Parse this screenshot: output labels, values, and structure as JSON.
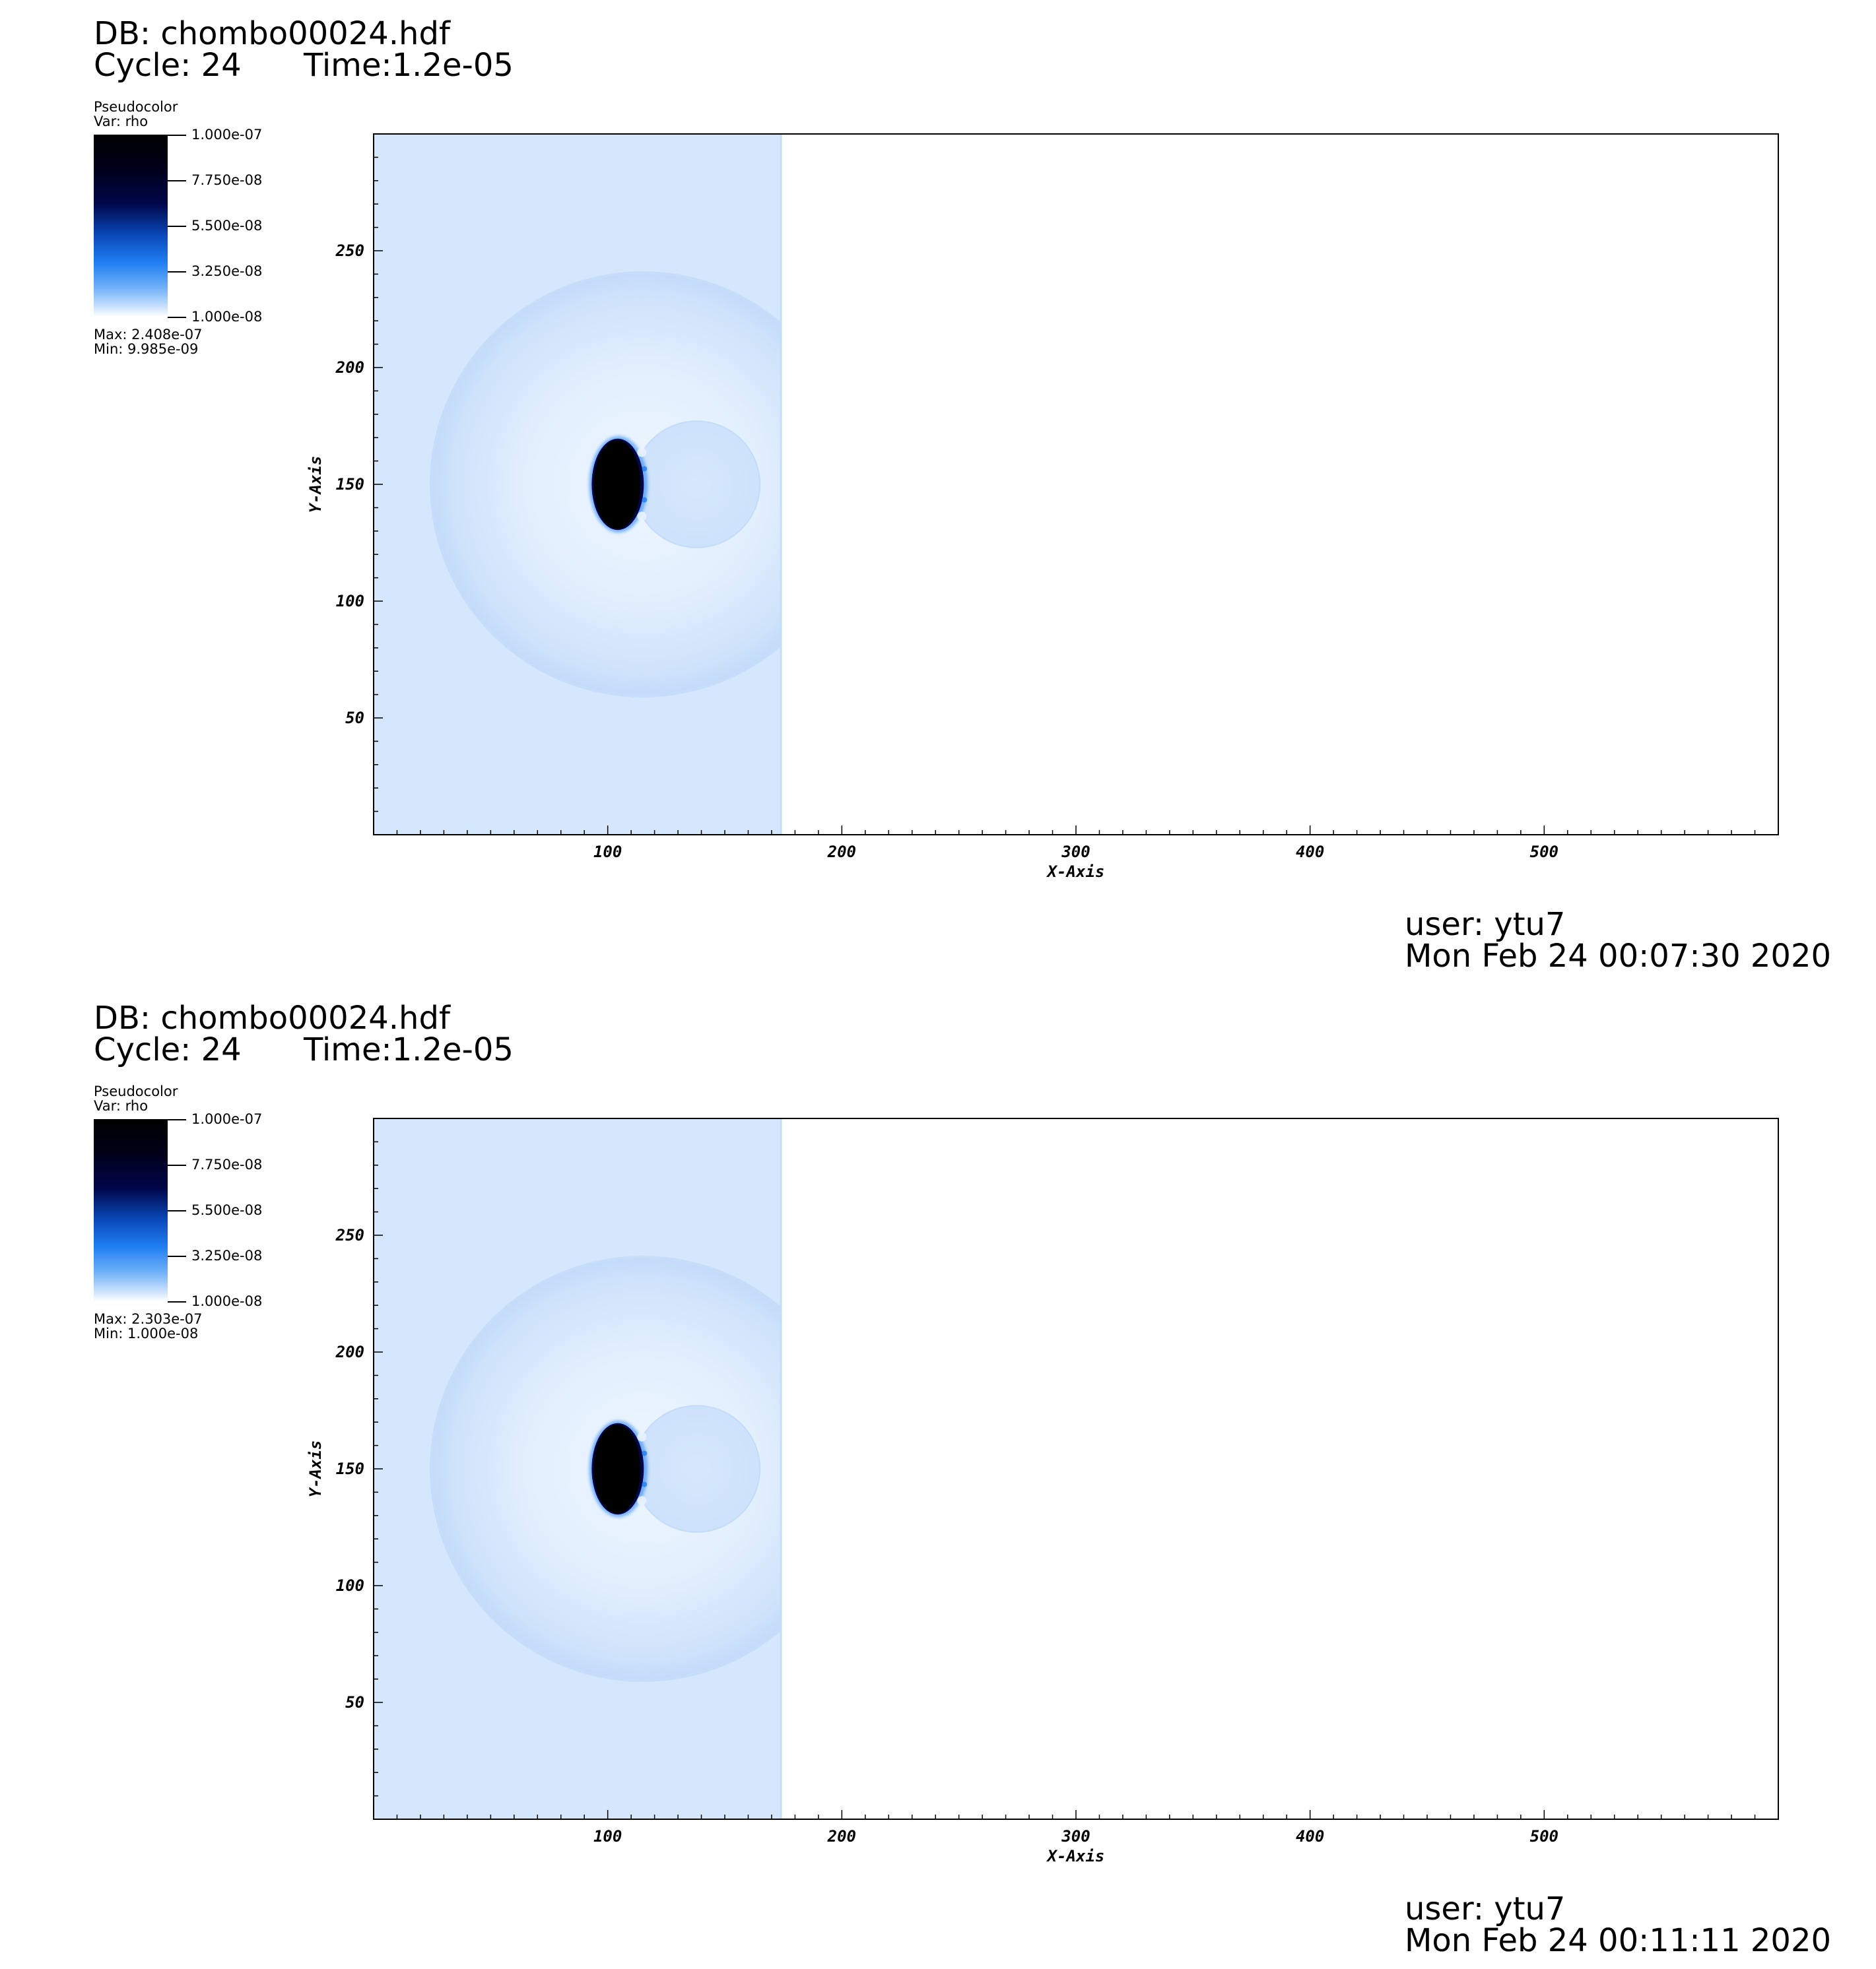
{
  "panels": [
    {
      "db": "DB: chombo00024.hdf",
      "cycle": "Cycle: 24",
      "time": "Time:1.2e-05",
      "legend": {
        "plot": "Pseudocolor",
        "var": "Var: rho",
        "ticks": [
          "1.000e-07",
          "7.750e-08",
          "5.500e-08",
          "3.250e-08",
          "1.000e-08"
        ],
        "max": "Max:  2.408e-07",
        "min": "Min:  9.985e-09"
      },
      "user": "user: ytu7",
      "date": "Mon Feb 24 00:07:30 2020"
    },
    {
      "db": "DB: chombo00024.hdf",
      "cycle": "Cycle: 24",
      "time": "Time:1.2e-05",
      "legend": {
        "plot": "Pseudocolor",
        "var": "Var: rho",
        "ticks": [
          "1.000e-07",
          "7.750e-08",
          "5.500e-08",
          "3.250e-08",
          "1.000e-08"
        ],
        "max": "Max:  2.303e-07",
        "min": "Min:  1.000e-08"
      },
      "user": "user: ytu7",
      "date": "Mon Feb 24 00:11:11 2020"
    }
  ],
  "chart_data": [
    {
      "type": "heatmap",
      "variable": "rho",
      "xlabel": "X-Axis",
      "ylabel": "Y-Axis",
      "xlim": [
        0,
        600
      ],
      "ylim": [
        0,
        300
      ],
      "xticks": [
        100,
        200,
        300,
        400,
        500
      ],
      "yticks": [
        50,
        100,
        150,
        200,
        250
      ],
      "color_range": [
        1e-08,
        1e-07
      ],
      "colormap": [
        "#000000",
        "#00064a",
        "#1f7ef2",
        "#ffffff"
      ],
      "field_color": "#d4e7fc",
      "shock_front_x": 174,
      "dense_blob": {
        "cx": 104,
        "cy": 150,
        "rx": 10,
        "ry": 19
      },
      "outer_shock": {
        "cx": 115,
        "cy": 150,
        "r": 91
      },
      "inner_bubble": {
        "cx": 138,
        "cy": 150,
        "r": 27
      }
    },
    {
      "type": "heatmap",
      "variable": "rho",
      "xlabel": "X-Axis",
      "ylabel": "Y-Axis",
      "xlim": [
        0,
        600
      ],
      "ylim": [
        0,
        300
      ],
      "xticks": [
        100,
        200,
        300,
        400,
        500
      ],
      "yticks": [
        50,
        100,
        150,
        200,
        250
      ],
      "color_range": [
        1e-08,
        1e-07
      ],
      "colormap": [
        "#000000",
        "#00064a",
        "#1f7ef2",
        "#ffffff"
      ],
      "field_color": "#d4e7fc",
      "shock_front_x": 174,
      "dense_blob": {
        "cx": 104,
        "cy": 150,
        "rx": 10,
        "ry": 19
      },
      "outer_shock": {
        "cx": 115,
        "cy": 150,
        "r": 91
      },
      "inner_bubble": {
        "cx": 138,
        "cy": 150,
        "r": 27
      }
    }
  ]
}
